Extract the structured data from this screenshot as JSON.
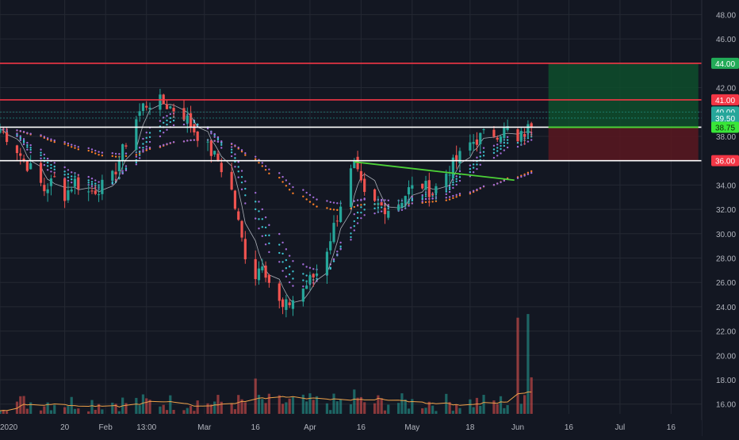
{
  "colors": {
    "background": "#131722",
    "grid": "#242833",
    "axis_text": "#b2b5be",
    "up": "#26a69a",
    "down": "#ef5350",
    "level_red": "#f23645",
    "level_white": "#ffffff",
    "trend_green": "#4cd137",
    "target_zone": "#0e4d2c",
    "stop_zone": "#5a1720",
    "target_badge": "#22ab58",
    "last_price_badge": "#26a69a",
    "entry_badge": "#39e639",
    "ema_orange": "#ff7f27",
    "ema_purple": "#a26bd7",
    "ema_cyan": "#3dc4d0",
    "ma_white": "#d1d4dc",
    "vol_ma": "#f0a24a"
  },
  "chart_data": {
    "type": "candlestick",
    "x_axis": {
      "date_range": [
        "2020-01-01",
        "2020-07-25"
      ],
      "tick_labels": [
        {
          "date": "2020-01-01",
          "label": "2020"
        },
        {
          "date": "2020-01-20",
          "label": "20"
        },
        {
          "date": "2020-02-01",
          "label": "Feb"
        },
        {
          "date": "2020-02-13",
          "label": "13:00"
        },
        {
          "date": "2020-03-01",
          "label": "Mar"
        },
        {
          "date": "2020-03-16",
          "label": "16"
        },
        {
          "date": "2020-04-01",
          "label": "Apr"
        },
        {
          "date": "2020-04-16",
          "label": "16"
        },
        {
          "date": "2020-05-01",
          "label": "May"
        },
        {
          "date": "2020-05-18",
          "label": "18"
        },
        {
          "date": "2020-06-01",
          "label": "Jun"
        },
        {
          "date": "2020-06-16",
          "label": "16"
        },
        {
          "date": "2020-07-01",
          "label": "Jul"
        },
        {
          "date": "2020-07-16",
          "label": "16"
        }
      ]
    },
    "y_axis": {
      "range": [
        15.2,
        49.2
      ],
      "ticks": [
        "16.00",
        "18.00",
        "20.00",
        "22.00",
        "24.00",
        "26.00",
        "28.00",
        "30.00",
        "32.00",
        "34.00",
        "36.00",
        "38.00",
        "40.00",
        "42.00",
        "44.00",
        "46.00",
        "48.00"
      ]
    },
    "price_path": [
      [
        "2020-01-01",
        38.6
      ],
      [
        "2020-01-05",
        37.4
      ],
      [
        "2020-01-08",
        36.0
      ],
      [
        "2020-01-11",
        35.0
      ],
      [
        "2020-01-14",
        33.6
      ],
      [
        "2020-01-17",
        34.5
      ],
      [
        "2020-01-20",
        33.2
      ],
      [
        "2020-01-23",
        34.3
      ],
      [
        "2020-01-27",
        33.4
      ],
      [
        "2020-01-31",
        33.9
      ],
      [
        "2020-02-03",
        34.6
      ],
      [
        "2020-02-06",
        36.8
      ],
      [
        "2020-02-09",
        39.0
      ],
      [
        "2020-02-12",
        40.5
      ],
      [
        "2020-02-16",
        41.0
      ],
      [
        "2020-02-20",
        40.4
      ],
      [
        "2020-02-24",
        39.8
      ],
      [
        "2020-02-27",
        38.5
      ],
      [
        "2020-03-01",
        37.4
      ],
      [
        "2020-03-05",
        36.0
      ],
      [
        "2020-03-09",
        33.5
      ],
      [
        "2020-03-12",
        29.5
      ],
      [
        "2020-03-15",
        26.0
      ],
      [
        "2020-03-18",
        27.8
      ],
      [
        "2020-03-21",
        25.2
      ],
      [
        "2020-03-24",
        23.8
      ],
      [
        "2020-03-27",
        24.6
      ],
      [
        "2020-03-31",
        25.8
      ],
      [
        "2020-04-03",
        26.8
      ],
      [
        "2020-04-06",
        28.8
      ],
      [
        "2020-04-09",
        31.5
      ],
      [
        "2020-04-12",
        34.5
      ],
      [
        "2020-04-14",
        35.6
      ],
      [
        "2020-04-17",
        33.0
      ],
      [
        "2020-04-20",
        32.4
      ],
      [
        "2020-04-24",
        32.1
      ],
      [
        "2020-04-27",
        32.5
      ],
      [
        "2020-04-30",
        33.6
      ],
      [
        "2020-05-04",
        34.0
      ],
      [
        "2020-05-07",
        33.4
      ],
      [
        "2020-05-11",
        35.0
      ],
      [
        "2020-05-14",
        36.0
      ],
      [
        "2020-05-18",
        37.4
      ],
      [
        "2020-05-22",
        38.1
      ],
      [
        "2020-05-26",
        38.3
      ],
      [
        "2020-05-29",
        38.6
      ],
      [
        "2020-06-01",
        37.4
      ],
      [
        "2020-06-02",
        38.0
      ],
      [
        "2020-06-04",
        38.6
      ],
      [
        "2020-06-06",
        39.6
      ]
    ],
    "volume_scale": {
      "base": 15.0,
      "max": 23.4
    },
    "volume_spikes": [
      {
        "date": "2020-06-01",
        "value": 23.1
      },
      {
        "date": "2020-06-04",
        "value": 23.4
      },
      {
        "date": "2020-06-05",
        "value": 18.2
      },
      {
        "date": "2020-03-16",
        "value": 18.1
      },
      {
        "date": "2020-04-14",
        "value": 17.2
      }
    ],
    "horizontal_levels": [
      {
        "value": 44.0,
        "color": "level_red",
        "label": "44.00",
        "badge": "target_badge"
      },
      {
        "value": 41.0,
        "color": "level_red",
        "label": "41.00",
        "badge": "level_red"
      },
      {
        "value": 38.75,
        "color": "level_white",
        "label": "38.75",
        "badge": "entry_badge"
      },
      {
        "value": 36.0,
        "color": "level_white",
        "label": "36.00",
        "badge": "level_red"
      }
    ],
    "price_badges": [
      {
        "value": 40.0,
        "label": "40.00"
      },
      {
        "value": 39.5,
        "label": "39.50"
      }
    ],
    "trendline": {
      "from": [
        "2020-04-14",
        35.9
      ],
      "to": [
        "2020-05-31",
        34.4
      ]
    },
    "position_zones": {
      "start_date": "2020-06-10",
      "end_date": "2020-07-24",
      "entry": 38.75,
      "target": 44.0,
      "stop": 36.0
    }
  }
}
